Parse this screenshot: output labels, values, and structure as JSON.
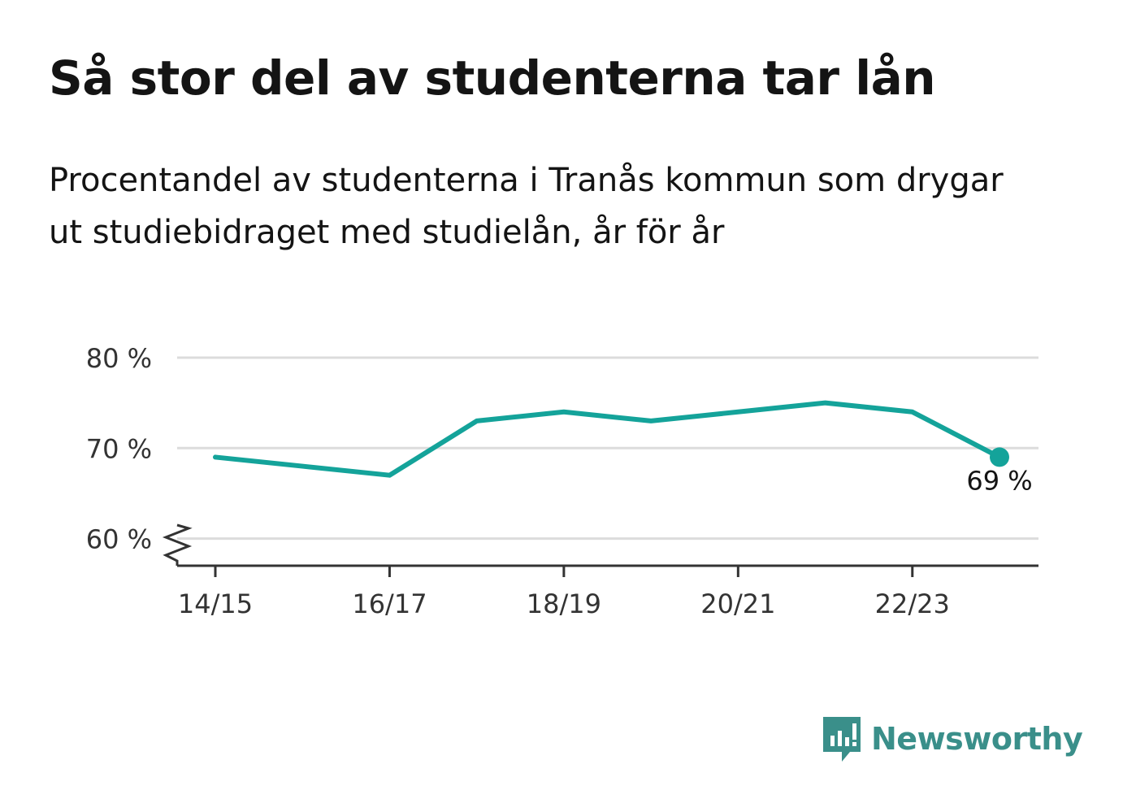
{
  "title": "Så stor del av studenterna tar lån",
  "subtitle": "Procentandel av studenterna i Tranås kommun som drygar ut studiebidraget med studielån, år för år",
  "brand": {
    "name": "Newsworthy",
    "color": "#3a8f8a",
    "icon": "newsworthy-logo-icon"
  },
  "chart_data": {
    "type": "line",
    "x": [
      "14/15",
      "15/16",
      "16/17",
      "17/18",
      "18/19",
      "19/20",
      "20/21",
      "21/22",
      "22/23",
      "23/24"
    ],
    "series": [
      {
        "values": [
          69,
          68,
          67,
          73,
          74,
          73,
          74,
          75,
          74,
          69
        ],
        "color": "#14a39a"
      }
    ],
    "xticks": [
      "14/15",
      "16/17",
      "18/19",
      "20/21",
      "22/23"
    ],
    "yticks": [
      60,
      70,
      80
    ],
    "ytick_labels": [
      "60 %",
      "70 %",
      "80 %"
    ],
    "ylim": [
      57,
      80
    ],
    "axis_break": true,
    "grid": true,
    "end_label": "69 %"
  }
}
